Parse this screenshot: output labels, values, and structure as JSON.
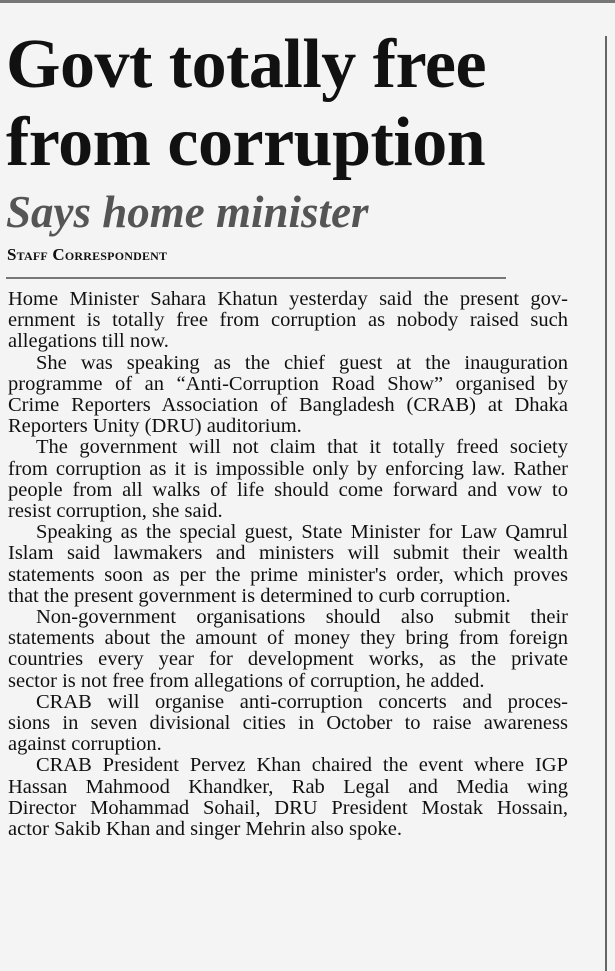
{
  "article": {
    "headline_lines": [
      "Govt totally free",
      "from corruption"
    ],
    "subhead": "Says home minister",
    "byline": "Staff Correspondent",
    "paragraphs": [
      [
        "Home Minister Sahara Khatun yesterday said the present gov-",
        "ernment is totally free from corruption as nobody raised such",
        "allegations till now."
      ],
      [
        "She was speaking as the chief guest at the inauguration",
        "programme of an “Anti-Corruption Road Show” organised by",
        "Crime Reporters Association of Bangladesh (CRAB) at Dhaka",
        "Reporters Unity (DRU) auditorium."
      ],
      [
        "The government will not claim that it totally freed society",
        "from corruption as it is impossible only by enforcing law. Rather",
        "people from all walks of life should come forward and vow to",
        "resist corruption, she said."
      ],
      [
        "Speaking as the special guest, State Minister for Law Qamrul",
        "Islam said lawmakers and ministers will submit their wealth",
        "statements soon as per the prime minister's order, which proves",
        "that the present government is determined to curb corruption."
      ],
      [
        "Non-government organisations should also submit their",
        "statements about the amount of money they bring from foreign",
        "countries every year for development works, as the private",
        "sector is not free from allegations of corruption, he added."
      ],
      [
        "CRAB will organise anti-corruption concerts and proces-",
        "sions in seven divisional cities in October to raise awareness",
        "against corruption."
      ],
      [
        "CRAB President Pervez Khan chaired the event where IGP",
        "Hassan Mahmood Khandker, Rab Legal and Media wing",
        "Director Mohammad Sohail, DRU President Mostak Hossain,",
        "actor Sakib Khan and singer Mehrin also spoke."
      ]
    ]
  }
}
